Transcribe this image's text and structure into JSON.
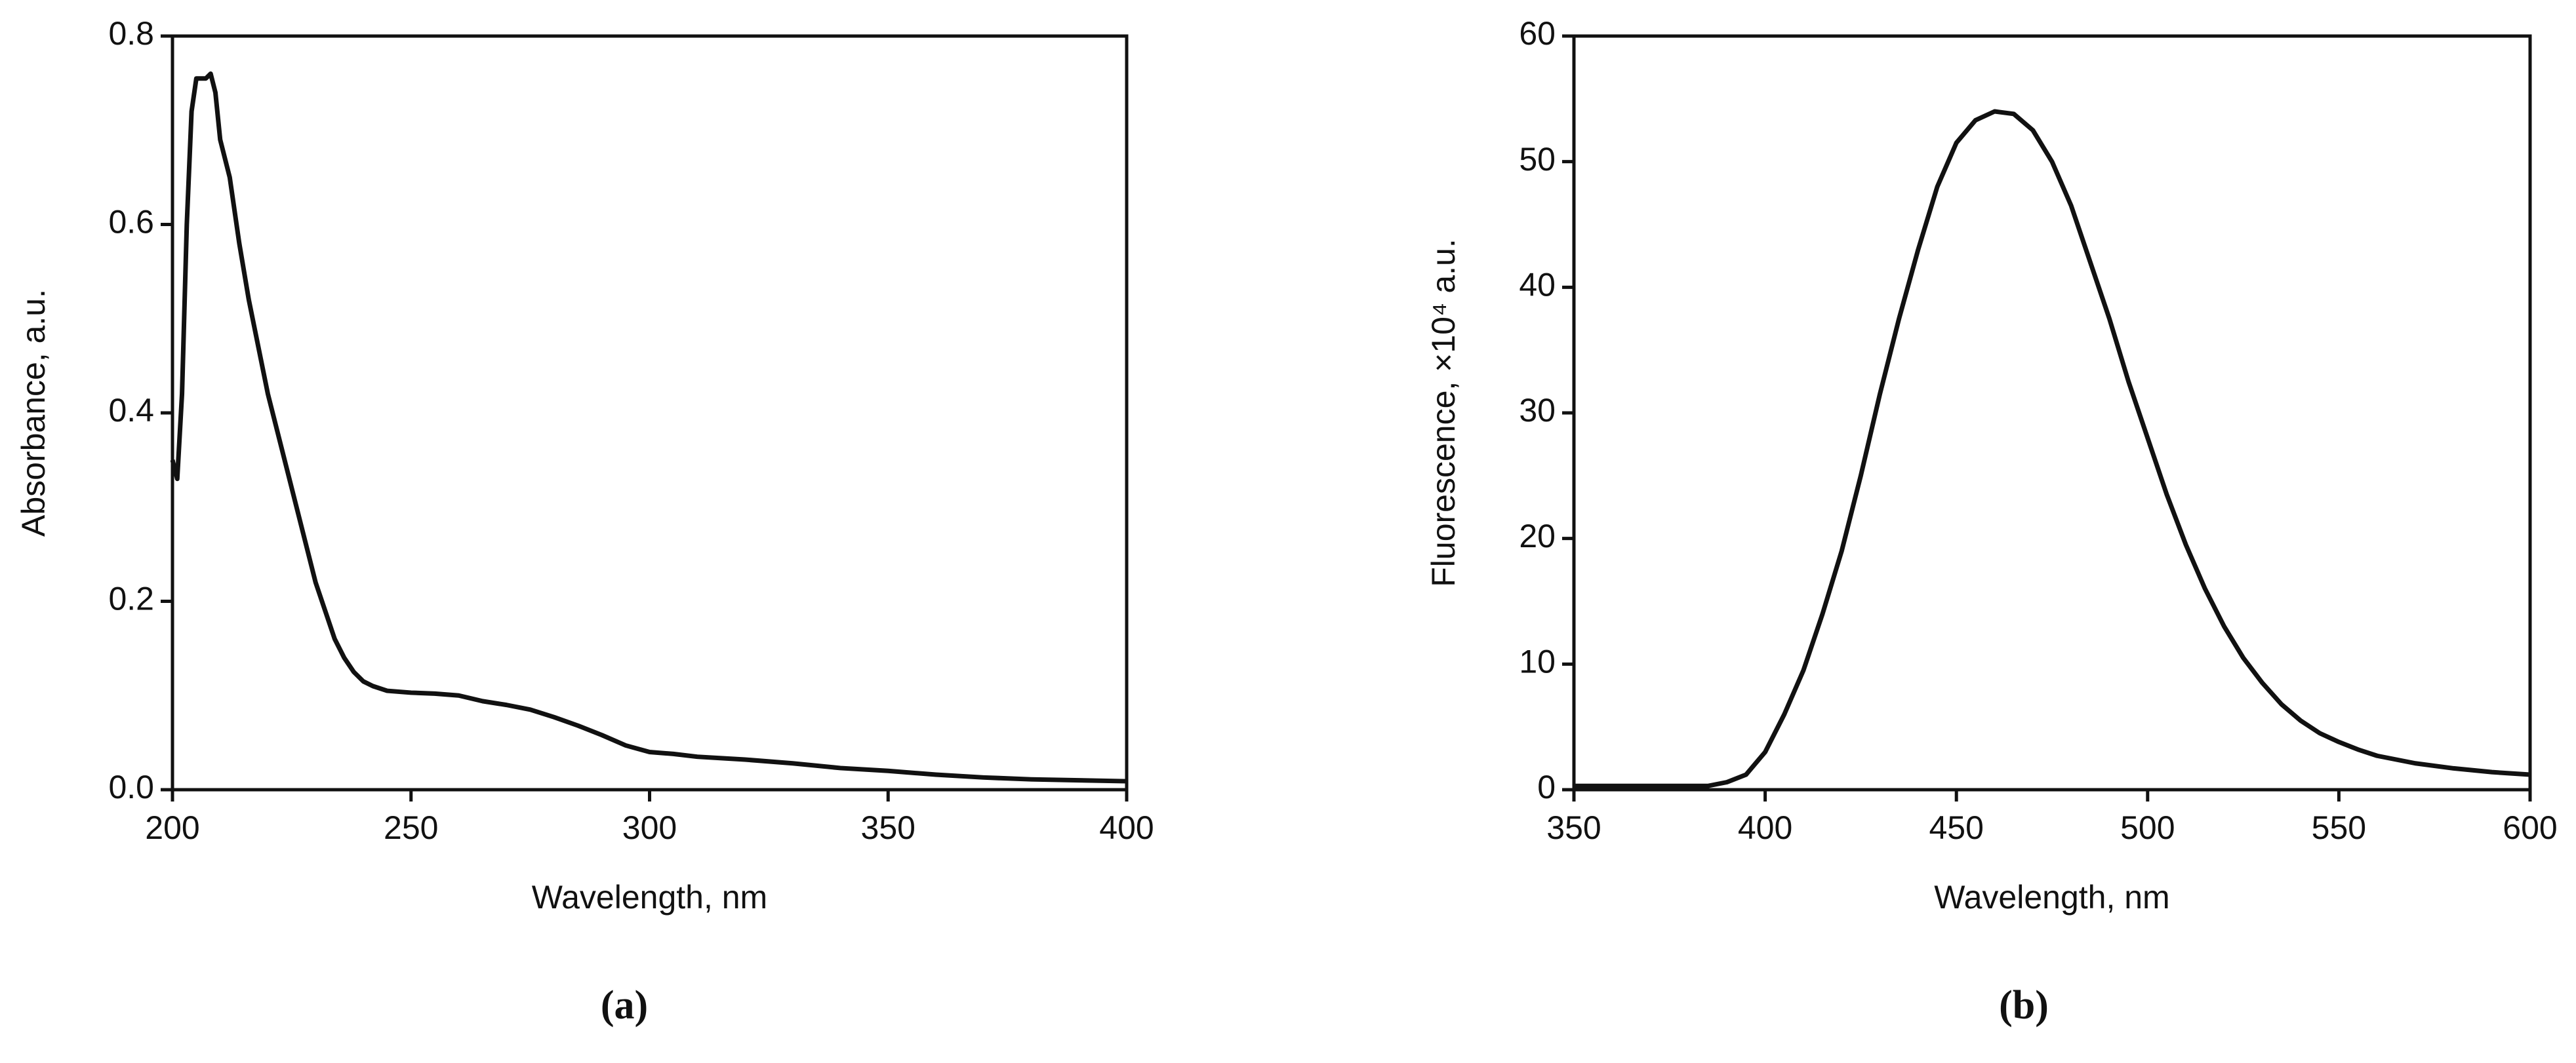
{
  "chart_data": [
    {
      "type": "line",
      "caption": "(a)",
      "xlabel": "Wavelength, nm",
      "ylabel": "Absorbance, a.u.",
      "x": [
        200,
        201,
        202,
        203,
        204,
        205,
        206,
        207,
        208,
        209,
        210,
        212,
        214,
        216,
        218,
        220,
        222,
        224,
        226,
        228,
        230,
        232,
        234,
        236,
        238,
        240,
        242,
        245,
        250,
        255,
        260,
        265,
        270,
        275,
        280,
        285,
        290,
        295,
        300,
        305,
        310,
        320,
        330,
        340,
        350,
        360,
        370,
        380,
        390,
        400
      ],
      "series": [
        {
          "color": "#111111",
          "values": [
            0.35,
            0.33,
            0.42,
            0.6,
            0.72,
            0.755,
            0.755,
            0.755,
            0.76,
            0.74,
            0.69,
            0.65,
            0.58,
            0.52,
            0.47,
            0.42,
            0.38,
            0.34,
            0.3,
            0.26,
            0.22,
            0.19,
            0.16,
            0.14,
            0.125,
            0.115,
            0.11,
            0.105,
            0.103,
            0.102,
            0.1,
            0.094,
            0.09,
            0.085,
            0.077,
            0.068,
            0.058,
            0.047,
            0.04,
            0.038,
            0.035,
            0.032,
            0.028,
            0.023,
            0.02,
            0.016,
            0.013,
            0.011,
            0.01,
            0.009
          ]
        }
      ],
      "xlim": [
        200,
        400
      ],
      "xticks": [
        200,
        250,
        300,
        350,
        400
      ],
      "ylim": [
        0,
        0.8
      ],
      "yticks": [
        {
          "value": 0,
          "label": "0.0"
        },
        0.2,
        0.4,
        0.6,
        0.8
      ]
    },
    {
      "type": "line",
      "caption": "(b)",
      "xlabel": "Wavelength, nm",
      "ylabel": "Fluorescence, ×10⁴ a.u.",
      "x": [
        350,
        360,
        370,
        380,
        385,
        390,
        395,
        400,
        405,
        410,
        415,
        420,
        425,
        430,
        435,
        440,
        445,
        450,
        455,
        460,
        465,
        470,
        475,
        480,
        485,
        490,
        495,
        500,
        505,
        510,
        515,
        520,
        525,
        530,
        535,
        540,
        545,
        550,
        555,
        560,
        570,
        580,
        590,
        600
      ],
      "series": [
        {
          "color": "#111111",
          "values": [
            0.3,
            0.3,
            0.3,
            0.3,
            0.3,
            0.6,
            1.2,
            3,
            6,
            9.5,
            14,
            19,
            25,
            31.5,
            37.5,
            43,
            48,
            51.5,
            53.3,
            54,
            53.8,
            52.5,
            50,
            46.5,
            42,
            37.5,
            32.5,
            28,
            23.5,
            19.5,
            16,
            13,
            10.5,
            8.5,
            6.8,
            5.5,
            4.5,
            3.8,
            3.2,
            2.7,
            2.1,
            1.7,
            1.4,
            1.2
          ]
        }
      ],
      "xlim": [
        350,
        600
      ],
      "xticks": [
        350,
        400,
        450,
        500,
        550,
        600
      ],
      "ylim": [
        0,
        60
      ],
      "yticks": [
        0,
        10,
        20,
        30,
        40,
        50,
        60
      ]
    }
  ]
}
